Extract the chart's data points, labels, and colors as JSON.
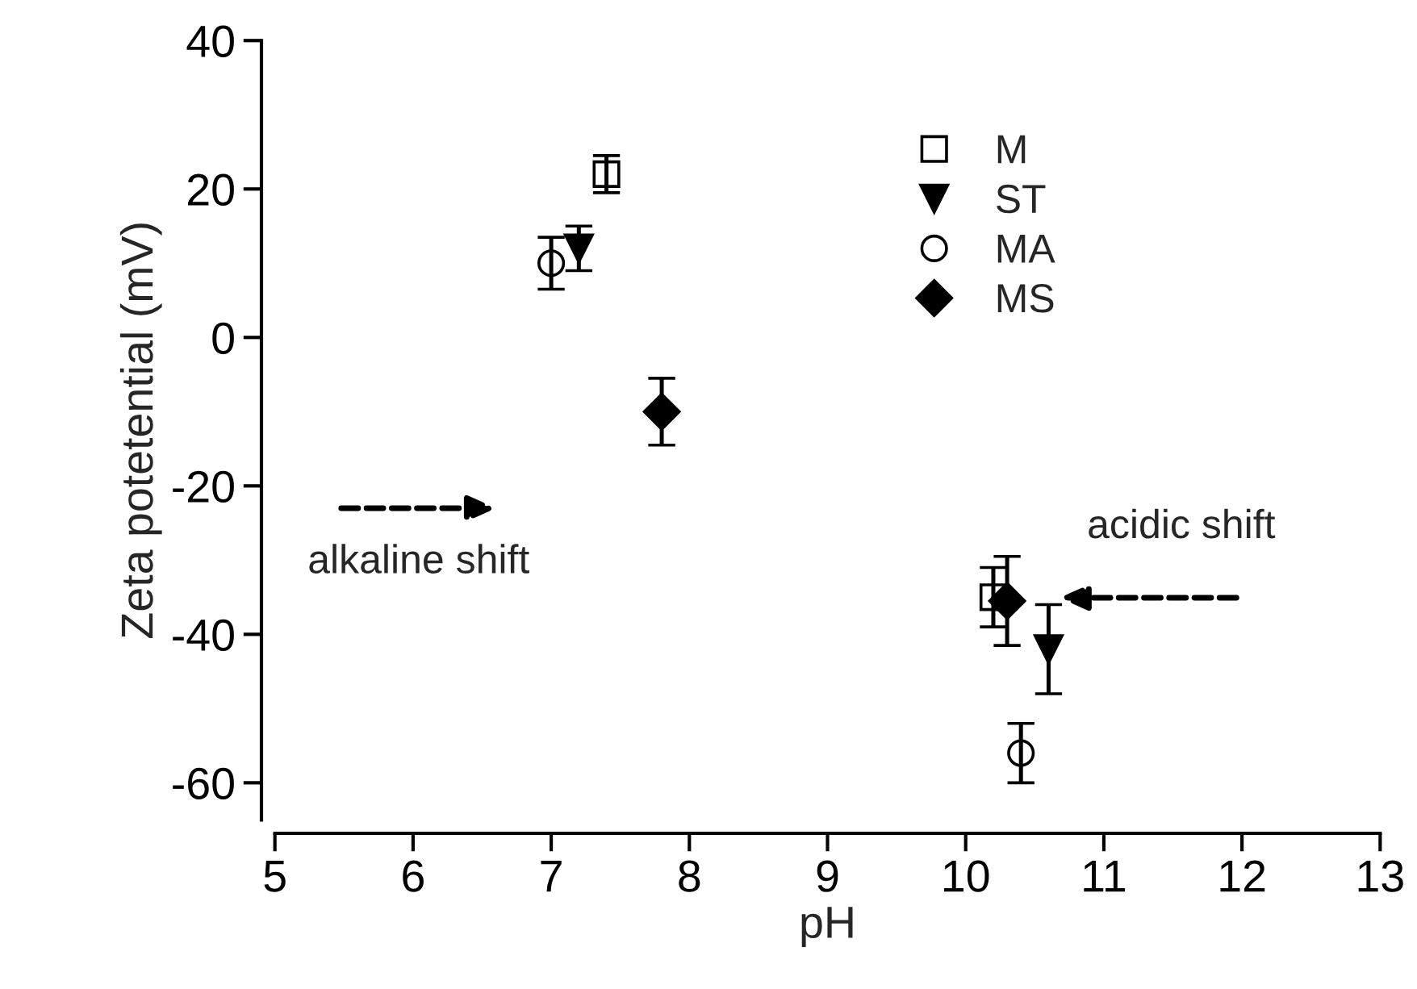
{
  "chart_data": {
    "type": "scatter",
    "xlabel": "pH",
    "ylabel": "Zeta potetential (mV)",
    "xlim": [
      5,
      13
    ],
    "xticks": [
      5,
      6,
      7,
      8,
      9,
      10,
      11,
      12,
      13
    ],
    "ylim": [
      -65,
      40
    ],
    "yticks": [
      -60,
      -40,
      -20,
      0,
      20,
      40
    ],
    "grid": false,
    "legend": "top right",
    "annotations": [
      "alkaline shift",
      "acidic shift"
    ],
    "series": [
      {
        "name": "M",
        "color": "#000000",
        "marker": "square",
        "x": [
          7.4,
          10.2
        ],
        "values": [
          22,
          -35
        ],
        "errors": [
          2.5,
          4
        ]
      },
      {
        "name": "ST",
        "color": "#000000",
        "marker": "triangle",
        "x": [
          7.2,
          10.6
        ],
        "values": [
          12,
          -42
        ],
        "errors": [
          3,
          6
        ]
      },
      {
        "name": "MA",
        "color": "#000000",
        "marker": "circle",
        "x": [
          7.0,
          10.4
        ],
        "values": [
          10,
          -56
        ],
        "errors": [
          3.5,
          4
        ]
      },
      {
        "name": "MS",
        "color": "#000000",
        "marker": "diamond",
        "x": [
          7.8,
          10.3
        ],
        "values": [
          -10,
          -35.5
        ],
        "errors": [
          4.5,
          6
        ]
      }
    ]
  }
}
